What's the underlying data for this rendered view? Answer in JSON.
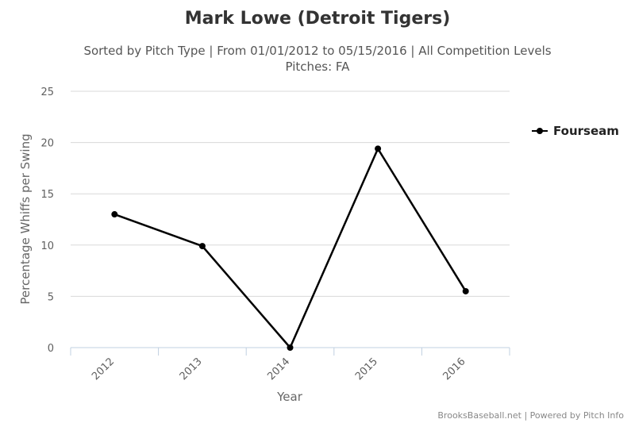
{
  "chart_data": {
    "type": "line",
    "title": "Mark Lowe (Detroit Tigers)",
    "subtitle_line1": "Sorted by Pitch Type | From 01/01/2012 to 05/15/2016 | All Competition Levels",
    "subtitle_line2": "Pitches: FA",
    "xlabel": "Year",
    "ylabel": "Percentage Whiffs per Swing",
    "categories": [
      "2012",
      "2013",
      "2014",
      "2015",
      "2016"
    ],
    "yticks": [
      "0",
      "5",
      "10",
      "15",
      "20",
      "25"
    ],
    "ylim": [
      0,
      25
    ],
    "grid": true,
    "legend_position": "right",
    "series": [
      {
        "name": "Fourseam",
        "values": [
          13.0,
          9.9,
          0.0,
          19.4,
          5.5
        ],
        "color": "#000000"
      }
    ],
    "credits": "BrooksBaseball.net | Powered by Pitch Info"
  }
}
